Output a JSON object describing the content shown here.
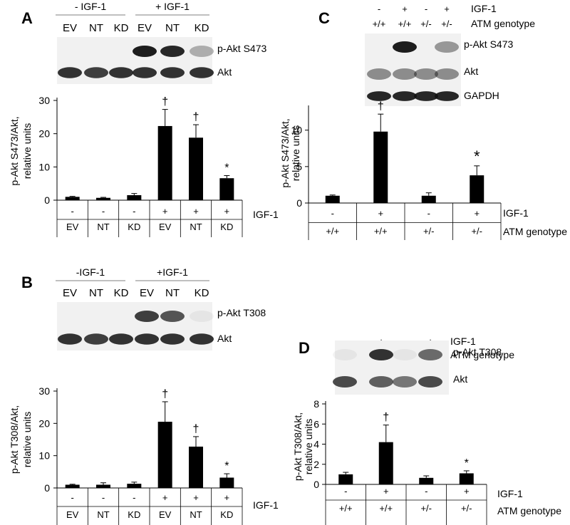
{
  "figure": {
    "colors": {
      "bar": "#000000",
      "axis": "#000000",
      "divider": "#7f7f7f",
      "blot_band": "#111111"
    },
    "panels": [
      {
        "letter": "A",
        "header_groups": [
          "- IGF-1",
          "+ IGF-1"
        ],
        "header_labels": [
          "EV",
          "NT",
          "KD",
          "EV",
          "NT",
          "KD"
        ],
        "blots": [
          {
            "label": "p-Akt S473",
            "intensity": [
              0.0,
              0.0,
              0.0,
              0.95,
              0.9,
              0.3
            ]
          },
          {
            "label": "Akt",
            "intensity": [
              0.85,
              0.8,
              0.85,
              0.85,
              0.85,
              0.85
            ]
          }
        ]
      },
      {
        "letter": "B",
        "header_groups": [
          "-IGF-1",
          "+IGF-1"
        ],
        "header_labels": [
          "EV",
          "NT",
          "KD",
          "EV",
          "NT",
          "KD"
        ],
        "blots": [
          {
            "label": "p-Akt T308",
            "intensity": [
              0.0,
              0.0,
              0.0,
              0.8,
              0.7,
              0.05
            ]
          },
          {
            "label": "Akt",
            "intensity": [
              0.85,
              0.8,
              0.85,
              0.85,
              0.85,
              0.85
            ]
          }
        ]
      },
      {
        "letter": "C",
        "top_rows": [
          {
            "values": [
              "-",
              "+",
              "-",
              "+"
            ],
            "label": "IGF-1"
          },
          {
            "values": [
              "+/+",
              "+/+",
              "+/-",
              "+/-"
            ],
            "label": "ATM genotype"
          }
        ],
        "blots": [
          {
            "label": "p-Akt S473",
            "intensity": [
              0.0,
              0.95,
              0.0,
              0.4
            ]
          },
          {
            "label": "Akt",
            "intensity": [
              0.45,
              0.45,
              0.45,
              0.45
            ]
          },
          {
            "label": "GAPDH",
            "intensity": [
              0.9,
              0.9,
              0.9,
              0.9
            ]
          }
        ]
      },
      {
        "letter": "D",
        "top_rows": [
          {
            "values": [
              "-",
              "+",
              "-",
              "+"
            ],
            "label": "IGF-1"
          },
          {
            "values": [
              "+/+",
              "+/+",
              "+/-",
              "+/-"
            ],
            "label": "ATM genotype"
          }
        ],
        "blots": [
          {
            "label": "p-Akt T308",
            "intensity": [
              0.05,
              0.85,
              0.05,
              0.6
            ]
          },
          {
            "label": "Akt",
            "intensity": [
              0.75,
              0.65,
              0.55,
              0.75
            ]
          }
        ]
      }
    ]
  },
  "chart_data": [
    {
      "type": "bar",
      "panel": "A",
      "ylabel": [
        "p-Akt S473/Akt,",
        "relative units"
      ],
      "ylim": [
        0,
        30
      ],
      "yticks": [
        0,
        10,
        20,
        30
      ],
      "categories": [
        "EV",
        "NT",
        "KD",
        "EV",
        "NT",
        "KD"
      ],
      "row1": {
        "values": [
          "-",
          "-",
          "-",
          "+",
          "+",
          "+"
        ],
        "label": "IGF-1"
      },
      "row2": {
        "values": [
          "EV",
          "NT",
          "KD",
          "EV",
          "NT",
          "KD"
        ],
        "label": ""
      },
      "values": [
        1.0,
        0.7,
        1.5,
        22.3,
        18.8,
        6.6
      ],
      "errors": [
        0.15,
        0.15,
        0.5,
        5.0,
        3.9,
        0.8
      ],
      "markers": [
        "",
        "",
        "",
        "†",
        "†",
        "*"
      ]
    },
    {
      "type": "bar",
      "panel": "B",
      "ylabel": [
        "p-Akt T308/Akt,",
        "relative units"
      ],
      "ylim": [
        0,
        30
      ],
      "yticks": [
        0,
        10,
        20,
        30
      ],
      "categories": [
        "EV",
        "NT",
        "KD",
        "EV",
        "NT",
        "KD"
      ],
      "row1": {
        "values": [
          "-",
          "-",
          "-",
          "+",
          "+",
          "+"
        ],
        "label": "IGF-1"
      },
      "row2": {
        "values": [
          "EV",
          "NT",
          "KD",
          "EV",
          "NT",
          "KD"
        ],
        "label": ""
      },
      "values": [
        1.0,
        1.0,
        1.3,
        20.5,
        12.8,
        3.2
      ],
      "errors": [
        0.15,
        0.6,
        0.5,
        6.2,
        3.1,
        1.2
      ],
      "markers": [
        "",
        "",
        "",
        "†",
        "†",
        "*"
      ]
    },
    {
      "type": "bar",
      "panel": "C",
      "ylabel": [
        "p-Akt S473/Akt,",
        "relative units"
      ],
      "ylim": [
        0,
        13
      ],
      "yticks": [
        0,
        5,
        10
      ],
      "categories": [
        "+/+",
        "+/+",
        "+/-",
        "+/-"
      ],
      "row1": {
        "values": [
          "-",
          "+",
          "-",
          "+"
        ],
        "label": "IGF-1"
      },
      "row2": {
        "values": [
          "+/+",
          "+/+",
          "+/-",
          "+/-"
        ],
        "label": "ATM genotype"
      },
      "values": [
        1.0,
        9.8,
        1.0,
        3.8
      ],
      "errors": [
        0.1,
        2.4,
        0.4,
        1.3
      ],
      "markers": [
        "",
        "†",
        "",
        "*"
      ]
    },
    {
      "type": "bar",
      "panel": "D",
      "ylabel": [
        "p-Akt T308/Akt,",
        "relative units"
      ],
      "ylim": [
        0,
        8
      ],
      "yticks": [
        0,
        2,
        4,
        6,
        8
      ],
      "categories": [
        "+/+",
        "+/+",
        "+/-",
        "+/-"
      ],
      "row1": {
        "values": [
          "-",
          "+",
          "-",
          "+"
        ],
        "label": "IGF-1"
      },
      "row2": {
        "values": [
          "+/+",
          "+/+",
          "+/-",
          "+/-"
        ],
        "label": "ATM genotype"
      },
      "values": [
        1.0,
        4.2,
        0.65,
        1.1
      ],
      "errors": [
        0.2,
        1.7,
        0.2,
        0.25
      ],
      "markers": [
        "",
        "†",
        "",
        "*"
      ]
    }
  ]
}
